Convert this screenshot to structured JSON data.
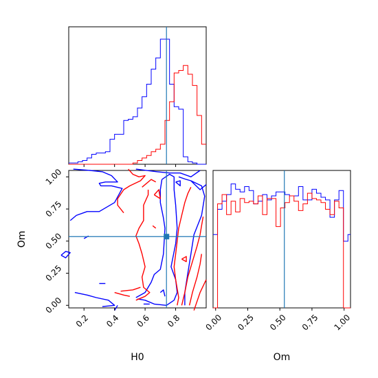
{
  "chart_data": {
    "type": "corner",
    "parameters": [
      "H0",
      "Om"
    ],
    "truths": {
      "H0": 0.74,
      "Om": 0.535
    },
    "colors": {
      "red": "#ff0000",
      "blue": "#0000ff",
      "truth": "#1f77b4"
    },
    "axes": {
      "H0": {
        "label": "H0",
        "range": [
          0.1,
          1.0
        ],
        "ticks": [
          0.2,
          0.4,
          0.6,
          0.8
        ],
        "tick_labels": [
          "0.2",
          "0.4",
          "0.6",
          "0.8"
        ]
      },
      "Om": {
        "label": "Om",
        "range": [
          -0.02,
          1.05
        ],
        "ticks": [
          0.0,
          0.25,
          0.5,
          0.75,
          1.0
        ],
        "tick_labels": [
          "0.00",
          "0.25",
          "0.50",
          "0.75",
          "1.00"
        ]
      }
    },
    "hist_H0": {
      "bin_edges": [
        0.1,
        0.13,
        0.16,
        0.19,
        0.22,
        0.25,
        0.28,
        0.31,
        0.34,
        0.37,
        0.4,
        0.43,
        0.46,
        0.49,
        0.52,
        0.55,
        0.58,
        0.61,
        0.64,
        0.67,
        0.7,
        0.73,
        0.76,
        0.79,
        0.82,
        0.85,
        0.88,
        0.91,
        0.94,
        0.97,
        1.0
      ],
      "series": [
        {
          "color": "blue",
          "values": [
            0.01,
            0.01,
            0.02,
            0.03,
            0.05,
            0.08,
            0.09,
            0.09,
            0.1,
            0.2,
            0.24,
            0.24,
            0.35,
            0.36,
            0.38,
            0.45,
            0.54,
            0.64,
            0.76,
            0.85,
            1.0,
            1.0,
            0.64,
            0.46,
            0.44,
            0.06,
            0.02,
            0.01,
            0.0,
            0.0
          ]
        },
        {
          "color": "red",
          "values": [
            0.0,
            0.0,
            0.0,
            0.0,
            0.0,
            0.0,
            0.0,
            0.0,
            0.0,
            0.0,
            0.0,
            0.0,
            0.0,
            0.0,
            0.01,
            0.03,
            0.05,
            0.07,
            0.1,
            0.12,
            0.16,
            0.35,
            0.5,
            0.73,
            0.75,
            0.79,
            0.72,
            0.63,
            0.39,
            0.16
          ]
        }
      ]
    },
    "hist_Om": {
      "bin_edges": [
        -0.02,
        0.015,
        0.05,
        0.085,
        0.12,
        0.155,
        0.19,
        0.225,
        0.26,
        0.295,
        0.33,
        0.365,
        0.4,
        0.435,
        0.47,
        0.505,
        0.54,
        0.575,
        0.61,
        0.645,
        0.68,
        0.715,
        0.75,
        0.785,
        0.82,
        0.855,
        0.89,
        0.925,
        0.96,
        0.995,
        1.03,
        1.05
      ],
      "ylim": [
        0,
        1.0
      ],
      "series": [
        {
          "color": "blue",
          "values": [
            0.55,
            0.74,
            0.8,
            0.85,
            0.93,
            0.89,
            0.87,
            0.91,
            0.88,
            0.78,
            0.8,
            0.85,
            0.81,
            0.84,
            0.87,
            0.87,
            0.85,
            0.84,
            0.84,
            0.91,
            0.81,
            0.81,
            0.89,
            0.86,
            0.83,
            0.81,
            0.68,
            0.81,
            0.88,
            0.5,
            0.55
          ]
        },
        {
          "color": "red",
          "values": [
            0.0,
            0.78,
            0.85,
            0.7,
            0.8,
            0.72,
            0.82,
            0.79,
            0.8,
            0.78,
            0.84,
            0.7,
            0.82,
            0.82,
            0.61,
            0.75,
            0.79,
            0.84,
            0.8,
            0.73,
            0.78,
            0.86,
            0.82,
            0.81,
            0.79,
            0.74,
            0.7,
            0.8,
            0.75,
            0.0,
            0.0
          ]
        }
      ]
    },
    "contours": [
      {
        "color": "blue",
        "level": "outer",
        "points": [
          [
            0.13,
            1.06
          ],
          [
            0.24,
            1.05
          ],
          [
            0.32,
            1.04
          ],
          [
            0.38,
            1.01
          ],
          [
            0.42,
            0.96
          ],
          [
            0.34,
            0.96
          ],
          [
            0.3,
            0.95
          ],
          [
            0.31,
            0.93
          ],
          [
            0.38,
            0.93
          ],
          [
            0.45,
            0.91
          ],
          [
            0.4,
            0.8
          ],
          [
            0.3,
            0.73
          ],
          [
            0.22,
            0.73
          ],
          [
            0.15,
            0.7
          ],
          [
            0.11,
            0.66
          ]
        ]
      },
      {
        "color": "blue",
        "level": "outer",
        "points": [
          [
            0.14,
            0.1
          ],
          [
            0.22,
            0.08
          ],
          [
            0.28,
            0.06
          ],
          [
            0.36,
            0.04
          ],
          [
            0.4,
            0.0
          ],
          [
            0.32,
            -0.01
          ]
        ]
      },
      {
        "color": "blue",
        "level": "outer",
        "points": [
          [
            0.54,
            1.06
          ],
          [
            0.68,
            1.04
          ],
          [
            0.76,
            1.03
          ],
          [
            0.83,
            1.03
          ],
          [
            0.9,
            1.0
          ],
          [
            0.96,
            1.05
          ]
        ]
      },
      {
        "color": "blue",
        "level": "outer",
        "points": [
          [
            0.9,
            0.97
          ],
          [
            0.96,
            0.9
          ],
          [
            1.0,
            0.94
          ]
        ]
      },
      {
        "color": "blue",
        "level": "mid",
        "points": [
          [
            0.71,
            0.98
          ],
          [
            0.76,
            1.02
          ],
          [
            0.79,
            1.0
          ],
          [
            0.79,
            0.9
          ],
          [
            0.8,
            0.78
          ],
          [
            0.81,
            0.6
          ],
          [
            0.8,
            0.48
          ],
          [
            0.77,
            0.3
          ],
          [
            0.8,
            0.2
          ],
          [
            0.81,
            0.1
          ],
          [
            0.79,
            0.04
          ],
          [
            0.74,
            0.0
          ],
          [
            0.66,
            0.01
          ],
          [
            0.6,
            0.04
          ],
          [
            0.55,
            0.05
          ]
        ]
      },
      {
        "color": "blue",
        "level": "mid",
        "points": [
          [
            0.54,
            0.06
          ],
          [
            0.6,
            0.1
          ],
          [
            0.64,
            0.18
          ],
          [
            0.66,
            0.24
          ],
          [
            0.7,
            0.28
          ],
          [
            0.72,
            0.4
          ],
          [
            0.73,
            0.6
          ],
          [
            0.72,
            0.68
          ],
          [
            0.7,
            0.8
          ],
          [
            0.7,
            0.9
          ],
          [
            0.71,
            0.98
          ]
        ]
      },
      {
        "color": "blue",
        "level": "inner",
        "points": [
          [
            0.82,
            1.0
          ],
          [
            0.87,
            0.98
          ],
          [
            0.9,
            0.97
          ],
          [
            0.97,
            0.93
          ],
          [
            0.99,
            0.85
          ],
          [
            0.97,
            0.7
          ],
          [
            0.92,
            0.55
          ],
          [
            0.9,
            0.4
          ],
          [
            0.88,
            0.25
          ],
          [
            0.86,
            0.1
          ],
          [
            0.86,
            0.0
          ]
        ]
      },
      {
        "color": "blue",
        "level": "small",
        "points": [
          [
            0.7,
            0.1
          ],
          [
            0.72,
            0.12
          ],
          [
            0.73,
            0.07
          ]
        ]
      },
      {
        "color": "blue",
        "level": "small",
        "points": [
          [
            0.8,
            0.96
          ],
          [
            0.83,
            0.93
          ],
          [
            0.83,
            0.97
          ],
          [
            0.8,
            0.96
          ]
        ]
      },
      {
        "color": "blue",
        "level": "small",
        "points": [
          [
            0.05,
            0.39
          ],
          [
            0.08,
            0.37
          ],
          [
            0.11,
            0.41
          ],
          [
            0.08,
            0.42
          ],
          [
            0.05,
            0.39
          ]
        ]
      },
      {
        "color": "blue",
        "level": "small",
        "points": [
          [
            0.2,
            0.52
          ],
          [
            0.23,
            0.54
          ]
        ]
      },
      {
        "color": "blue",
        "level": "small",
        "points": [
          [
            0.3,
            0.17
          ],
          [
            0.34,
            0.17
          ]
        ]
      },
      {
        "color": "blue",
        "level": "small",
        "points": [
          [
            0.4,
            -0.04
          ],
          [
            0.42,
            0.0
          ]
        ]
      },
      {
        "color": "blue",
        "level": "small",
        "points": [
          [
            0.59,
            0.01
          ],
          [
            0.63,
            0.01
          ]
        ]
      },
      {
        "color": "red",
        "level": "outer",
        "points": [
          [
            0.49,
            1.06
          ],
          [
            0.52,
            1.02
          ],
          [
            0.56,
            1.0
          ],
          [
            0.6,
            1.01
          ],
          [
            0.57,
            0.97
          ],
          [
            0.5,
            0.93
          ],
          [
            0.46,
            0.9
          ],
          [
            0.42,
            0.83
          ],
          [
            0.42,
            0.78
          ],
          [
            0.46,
            0.72
          ]
        ]
      },
      {
        "color": "red",
        "level": "outer",
        "points": [
          [
            0.4,
            0.1
          ],
          [
            0.46,
            0.08
          ],
          [
            0.5,
            0.07
          ]
        ]
      },
      {
        "color": "red",
        "level": "mid",
        "points": [
          [
            0.54,
            0.04
          ],
          [
            0.6,
            0.07
          ],
          [
            0.63,
            0.1
          ],
          [
            0.59,
            0.14
          ],
          [
            0.58,
            0.22
          ],
          [
            0.6,
            0.3
          ],
          [
            0.58,
            0.4
          ],
          [
            0.56,
            0.48
          ],
          [
            0.54,
            0.54
          ],
          [
            0.56,
            0.6
          ],
          [
            0.59,
            0.66
          ],
          [
            0.59,
            0.78
          ],
          [
            0.62,
            0.86
          ],
          [
            0.62,
            0.9
          ]
        ]
      },
      {
        "color": "red",
        "level": "mid",
        "points": [
          [
            0.44,
            0.11
          ],
          [
            0.52,
            0.12
          ],
          [
            0.57,
            0.14
          ]
        ]
      },
      {
        "color": "red",
        "level": "inner",
        "points": [
          [
            0.81,
            0.0
          ],
          [
            0.82,
            0.06
          ],
          [
            0.8,
            0.2
          ],
          [
            0.79,
            0.3
          ],
          [
            0.8,
            0.4
          ],
          [
            0.81,
            0.5
          ],
          [
            0.82,
            0.6
          ],
          [
            0.84,
            0.7
          ],
          [
            0.86,
            0.8
          ],
          [
            0.88,
            0.87
          ],
          [
            0.9,
            0.92
          ]
        ]
      },
      {
        "color": "red",
        "level": "inner",
        "points": [
          [
            0.84,
            0.0
          ],
          [
            0.86,
            0.1
          ],
          [
            0.88,
            0.22
          ],
          [
            0.91,
            0.34
          ],
          [
            0.94,
            0.46
          ],
          [
            0.96,
            0.55
          ],
          [
            0.97,
            0.62
          ],
          [
            0.98,
            0.69
          ]
        ]
      },
      {
        "color": "red",
        "level": "inner",
        "points": [
          [
            0.89,
            0.0
          ],
          [
            0.91,
            0.1
          ],
          [
            0.94,
            0.22
          ],
          [
            0.96,
            0.32
          ],
          [
            0.97,
            0.4
          ]
        ]
      },
      {
        "color": "red",
        "level": "inner",
        "points": [
          [
            0.92,
            -0.04
          ],
          [
            0.96,
            0.1
          ],
          [
            1.0,
            0.2
          ]
        ]
      },
      {
        "color": "red",
        "level": "inner",
        "points": [
          [
            0.66,
            0.86
          ],
          [
            0.7,
            0.83
          ],
          [
            0.69,
            0.9
          ],
          [
            0.66,
            0.86
          ]
        ]
      },
      {
        "color": "red",
        "level": "inner",
        "points": [
          [
            0.58,
            0.92
          ],
          [
            0.64,
            0.98
          ],
          [
            0.67,
            0.96
          ]
        ]
      },
      {
        "color": "red",
        "level": "inner",
        "points": [
          [
            0.84,
            0.36
          ],
          [
            0.87,
            0.34
          ],
          [
            0.87,
            0.38
          ],
          [
            0.84,
            0.36
          ]
        ]
      },
      {
        "color": "red",
        "level": "inner",
        "points": [
          [
            0.65,
            0.62
          ],
          [
            0.67,
            0.6
          ]
        ]
      }
    ]
  }
}
